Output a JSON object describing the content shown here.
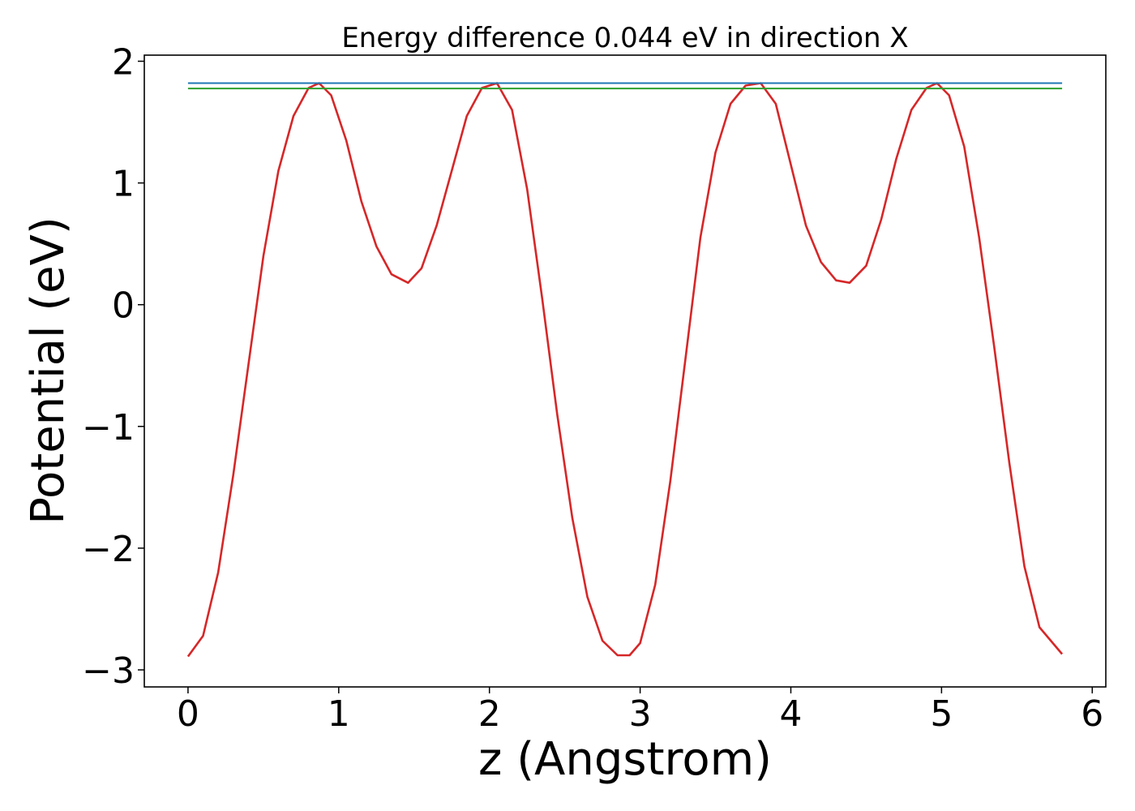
{
  "chart_data": {
    "type": "line",
    "title": "Energy difference 0.044 eV in direction X",
    "xlabel": "z (Angstrom)",
    "ylabel": "Potential (eV)",
    "xlim": [
      -0.29,
      6.09
    ],
    "ylim": [
      -3.14,
      2.05
    ],
    "xticks": [
      0,
      1,
      2,
      3,
      4,
      5,
      6
    ],
    "xtick_labels": [
      "0",
      "1",
      "2",
      "3",
      "4",
      "5",
      "6"
    ],
    "yticks": [
      -3,
      -2,
      -1,
      0,
      1,
      2
    ],
    "ytick_labels": [
      "−3",
      "−2",
      "−1",
      "0",
      "1",
      "2"
    ],
    "grid": false,
    "series": [
      {
        "color": "#d62728",
        "x": [
          0.0,
          0.1,
          0.2,
          0.3,
          0.4,
          0.5,
          0.6,
          0.7,
          0.8,
          0.87,
          0.95,
          1.05,
          1.15,
          1.25,
          1.35,
          1.46,
          1.55,
          1.65,
          1.75,
          1.85,
          1.95,
          2.05,
          2.15,
          2.25,
          2.35,
          2.45,
          2.55,
          2.65,
          2.75,
          2.85,
          2.93,
          3.0,
          3.1,
          3.2,
          3.3,
          3.4,
          3.5,
          3.6,
          3.7,
          3.8,
          3.9,
          4.0,
          4.1,
          4.2,
          4.3,
          4.39,
          4.5,
          4.6,
          4.7,
          4.8,
          4.9,
          4.97,
          5.05,
          5.15,
          5.25,
          5.35,
          5.45,
          5.55,
          5.65,
          5.8
        ],
        "y": [
          -2.89,
          -2.72,
          -2.2,
          -1.4,
          -0.5,
          0.4,
          1.1,
          1.55,
          1.78,
          1.82,
          1.72,
          1.35,
          0.85,
          0.48,
          0.25,
          0.18,
          0.3,
          0.65,
          1.1,
          1.55,
          1.78,
          1.82,
          1.6,
          0.95,
          0.05,
          -0.9,
          -1.75,
          -2.4,
          -2.76,
          -2.88,
          -2.88,
          -2.78,
          -2.3,
          -1.45,
          -0.45,
          0.55,
          1.25,
          1.65,
          1.8,
          1.82,
          1.65,
          1.15,
          0.65,
          0.35,
          0.2,
          0.18,
          0.32,
          0.7,
          1.2,
          1.6,
          1.78,
          1.82,
          1.72,
          1.3,
          0.55,
          -0.35,
          -1.3,
          -2.15,
          -2.65,
          -2.87
        ]
      },
      {
        "color": "#1f77b4",
        "x": [
          0.0,
          5.8
        ],
        "y": [
          1.82,
          1.82
        ]
      },
      {
        "color": "#2ca02c",
        "x": [
          0.0,
          5.8
        ],
        "y": [
          1.776,
          1.776
        ]
      }
    ]
  }
}
